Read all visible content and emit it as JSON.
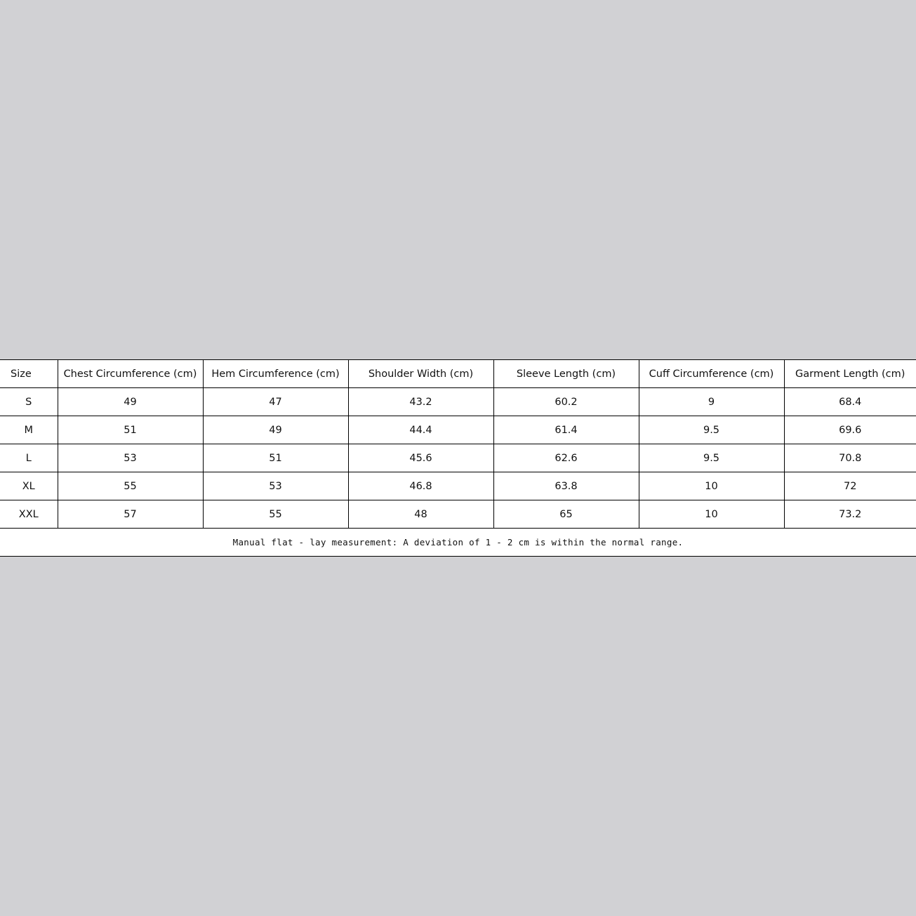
{
  "table": {
    "headers": [
      "Size",
      "Chest Circumference (cm)",
      "Hem Circumference (cm)",
      "Shoulder Width (cm)",
      "Sleeve Length (cm)",
      "Cuff Circumference (cm)",
      "Garment Length (cm)"
    ],
    "rows": [
      [
        "S",
        "49",
        "47",
        "43.2",
        "60.2",
        "9",
        "68.4"
      ],
      [
        "M",
        "51",
        "49",
        "44.4",
        "61.4",
        "9.5",
        "69.6"
      ],
      [
        "L",
        "53",
        "51",
        "45.6",
        "62.6",
        "9.5",
        "70.8"
      ],
      [
        "XL",
        "55",
        "53",
        "46.8",
        "63.8",
        "10",
        "72"
      ],
      [
        "XXL",
        "57",
        "55",
        "48",
        "65",
        "10",
        "73.2"
      ]
    ],
    "note": "Manual flat - lay measurement: A deviation of 1 - 2 cm is within the normal range."
  }
}
